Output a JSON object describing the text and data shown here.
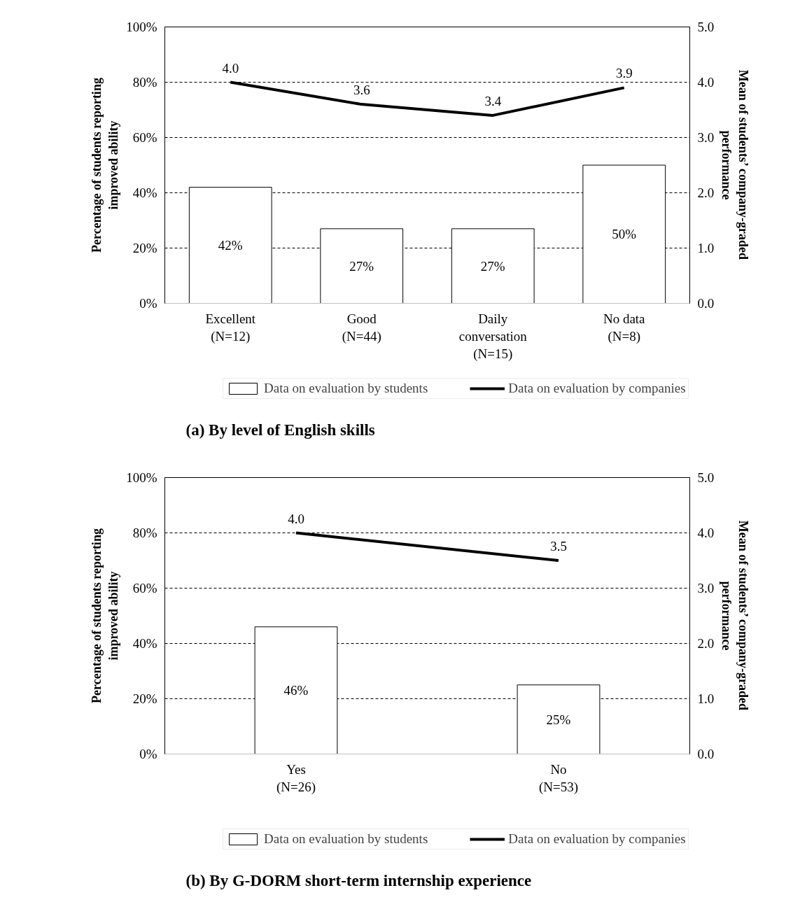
{
  "chart_data": [
    {
      "type": "bar",
      "title": "(a) By level of English skills",
      "ylabel": "Percentage of students reporting\nimproved ability",
      "y2label": "Mean of students’ company-graded\nperformance",
      "categories": [
        "Excellent\n(N=12)",
        "Good\n(N=44)",
        "Daily\nconversation\n(N=15)",
        "No data\n(N=8)"
      ],
      "series": [
        {
          "name": "Data on evaluation by students",
          "type": "bar",
          "color": "#ffffff",
          "values": [
            42,
            27,
            27,
            50
          ],
          "value_labels": [
            "42%",
            "27%",
            "27%",
            "50%"
          ]
        },
        {
          "name": "Data on evaluation by companies",
          "type": "line",
          "axis": "y2",
          "color": "#000000",
          "values": [
            4.0,
            3.6,
            3.4,
            3.9
          ],
          "value_labels": [
            "4.0",
            "3.6",
            "3.4",
            "3.9"
          ]
        }
      ],
      "ylim": [
        0,
        100
      ],
      "yticks": [
        {
          "value": 0,
          "label": "0%"
        },
        {
          "value": 20,
          "label": "20%"
        },
        {
          "value": 40,
          "label": "40%"
        },
        {
          "value": 60,
          "label": "60%"
        },
        {
          "value": 80,
          "label": "80%"
        },
        {
          "value": 100,
          "label": "100%"
        }
      ],
      "y2lim": [
        0,
        5
      ],
      "y2ticks": [
        {
          "value": 0,
          "label": "0.0"
        },
        {
          "value": 1,
          "label": "1.0"
        },
        {
          "value": 2,
          "label": "2.0"
        },
        {
          "value": 3,
          "label": "3.0"
        },
        {
          "value": 4,
          "label": "4.0"
        },
        {
          "value": 5,
          "label": "5.0"
        }
      ],
      "grid": "y",
      "legend": "bottom",
      "marker": "none"
    },
    {
      "type": "bar",
      "title": "(b) By G-DORM short-term internship experience",
      "ylabel": "Percentage of students reporting\nimproved ability",
      "y2label": "Mean of students’ company-graded\nperformance",
      "categories": [
        "Yes\n(N=26)",
        "No\n(N=53)"
      ],
      "series": [
        {
          "name": "Data on evaluation by students",
          "type": "bar",
          "color": "#ffffff",
          "values": [
            46,
            25
          ],
          "value_labels": [
            "46%",
            "25%"
          ]
        },
        {
          "name": "Data on evaluation by companies",
          "type": "line",
          "axis": "y2",
          "color": "#000000",
          "values": [
            4.0,
            3.5
          ],
          "value_labels": [
            "4.0",
            "3.5"
          ]
        }
      ],
      "ylim": [
        0,
        100
      ],
      "yticks": [
        {
          "value": 0,
          "label": "0%"
        },
        {
          "value": 20,
          "label": "20%"
        },
        {
          "value": 40,
          "label": "40%"
        },
        {
          "value": 60,
          "label": "60%"
        },
        {
          "value": 80,
          "label": "80%"
        },
        {
          "value": 100,
          "label": "100%"
        }
      ],
      "y2lim": [
        0,
        5
      ],
      "y2ticks": [
        {
          "value": 0,
          "label": "0.0"
        },
        {
          "value": 1,
          "label": "1.0"
        },
        {
          "value": 2,
          "label": "2.0"
        },
        {
          "value": 3,
          "label": "3.0"
        },
        {
          "value": 4,
          "label": "4.0"
        },
        {
          "value": 5,
          "label": "5.0"
        }
      ],
      "grid": "y",
      "legend": "bottom",
      "marker": "none"
    }
  ]
}
